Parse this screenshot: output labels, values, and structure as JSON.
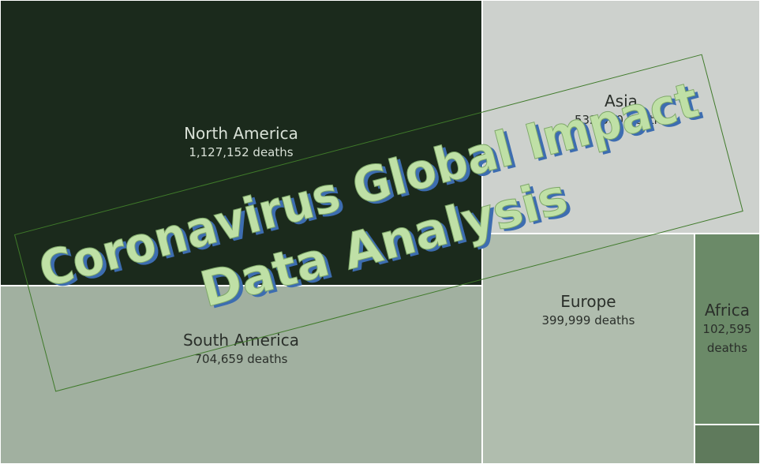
{
  "chart_data": {
    "type": "treemap",
    "title": "Coronavirus Global Impact",
    "subtitle": "Data Analysis",
    "categories": [
      "North America",
      "South America",
      "Asia",
      "Europe",
      "Africa",
      null
    ],
    "values": [
      1127152,
      704659,
      532000,
      399999,
      102595,
      21000
    ],
    "value_labels": [
      "1,127,152 deaths",
      "704,659 deaths",
      "532,000 deaths",
      "399,999 deaths",
      "102,595 deaths",
      null
    ],
    "colors": [
      "#1b2a1c",
      "#a1b0a0",
      "#cdd1cd",
      "#b0bdae",
      "#6b8a68",
      "#5f7a5c"
    ]
  }
}
